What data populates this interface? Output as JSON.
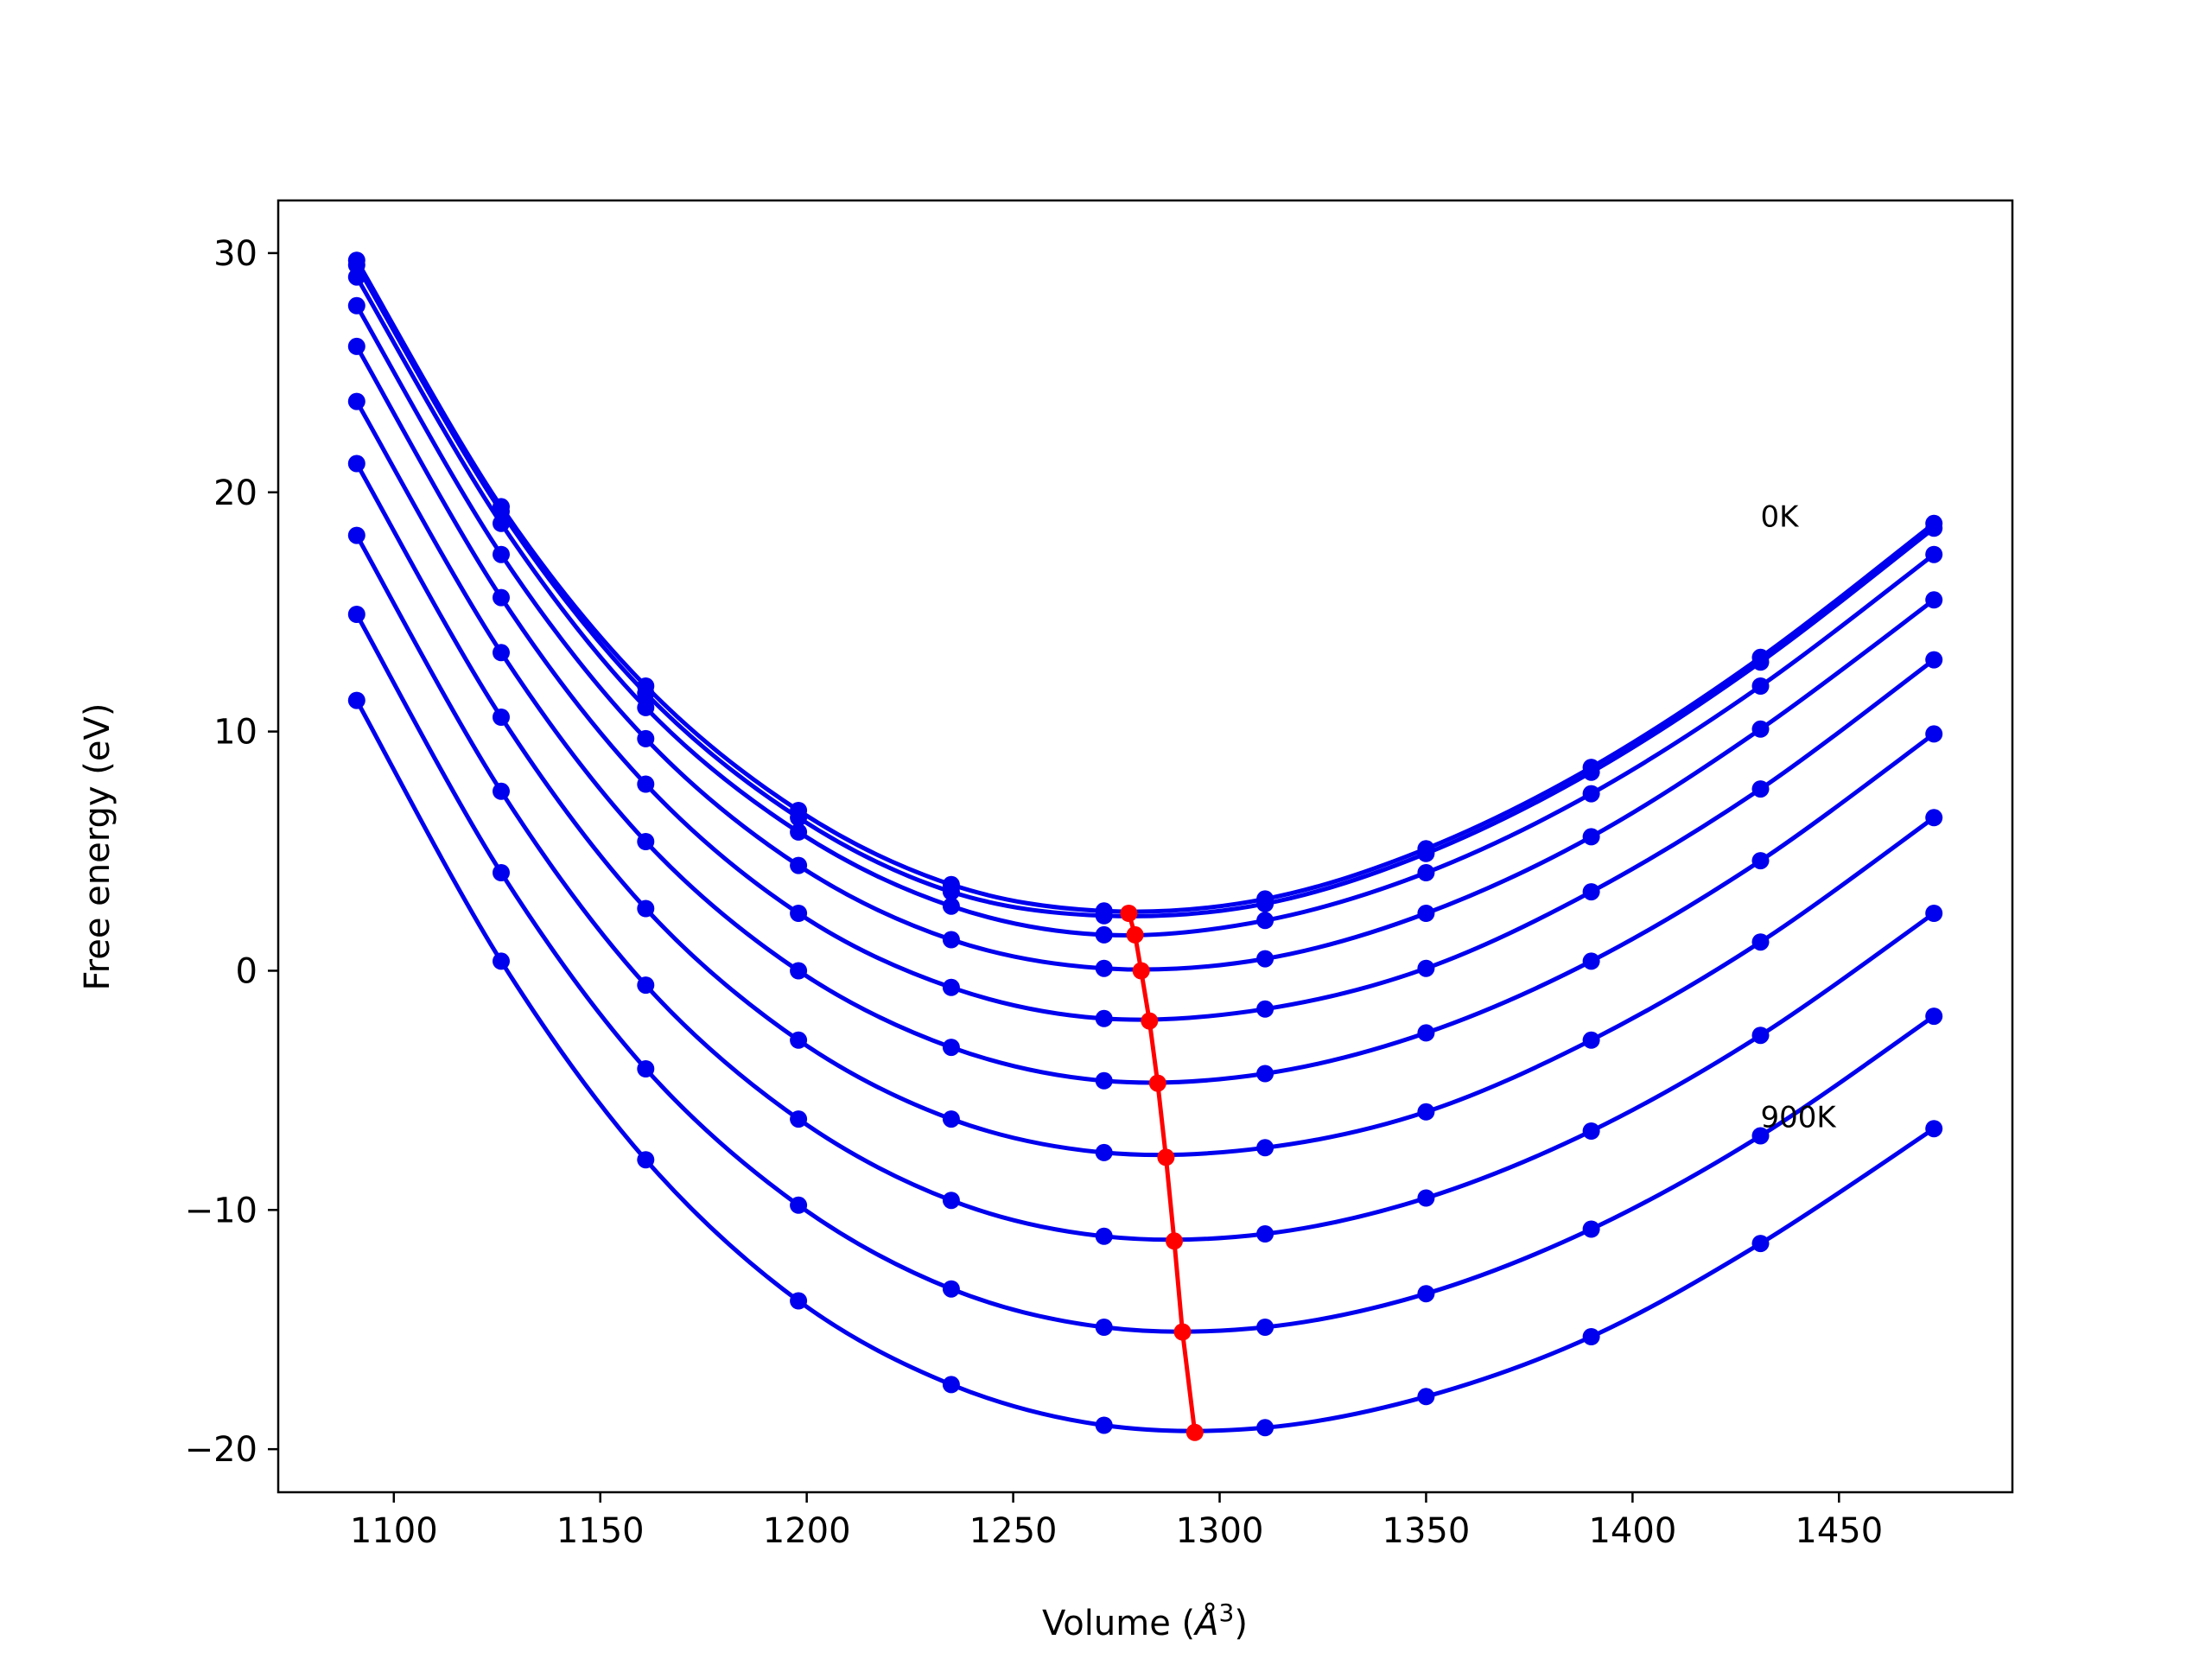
{
  "chart_data": {
    "type": "line",
    "title": "",
    "xlabel": "Volume (",
    "xlabel_symbol": "Å",
    "xlabel_exponent": "3",
    "xlabel_end": ")",
    "ylabel": "Free energy (eV)",
    "xlim": [
      1072,
      1492
    ],
    "ylim": [
      -21.8,
      32.2
    ],
    "x_ticks": [
      1100,
      1150,
      1200,
      1250,
      1300,
      1350,
      1400,
      1450
    ],
    "x_tick_labels": [
      "1100",
      "1150",
      "1200",
      "1250",
      "1300",
      "1350",
      "1400",
      "1450"
    ],
    "y_ticks": [
      -20,
      -10,
      0,
      10,
      20,
      30
    ],
    "y_tick_labels": [
      "−20",
      "−10",
      "0",
      "10",
      "20",
      "30"
    ],
    "grid": false,
    "annotations": [
      {
        "text": "0K",
        "x": 1431,
        "y": 19.0
      },
      {
        "text": "900K",
        "x": 1431,
        "y": -6.1
      }
    ],
    "x": [
      1091,
      1126,
      1161,
      1198,
      1235,
      1272,
      1311,
      1350,
      1390,
      1431,
      1473
    ],
    "series": [
      {
        "color": "#0000ee",
        "values": [
          29.7,
          19.4,
          11.9,
          6.7,
          3.6,
          2.5,
          3.0,
          5.1,
          8.5,
          13.1,
          18.7
        ]
      },
      {
        "color": "#0000ee",
        "values": [
          29.5,
          19.2,
          11.6,
          6.4,
          3.3,
          2.3,
          2.8,
          4.9,
          8.3,
          12.9,
          18.5
        ]
      },
      {
        "color": "#0000ee",
        "values": [
          29.0,
          18.7,
          11.0,
          5.8,
          2.7,
          1.5,
          2.1,
          4.1,
          7.4,
          11.9,
          17.4
        ]
      },
      {
        "color": "#0000ee",
        "values": [
          27.8,
          17.4,
          9.7,
          4.4,
          1.3,
          0.1,
          0.5,
          2.4,
          5.6,
          10.1,
          15.5
        ]
      },
      {
        "color": "#0000ee",
        "values": [
          26.1,
          15.6,
          7.8,
          2.4,
          -0.7,
          -2.0,
          -1.6,
          0.1,
          3.3,
          7.6,
          13.0
        ]
      },
      {
        "color": "#0000ee",
        "values": [
          23.8,
          13.3,
          5.4,
          0.0,
          -3.2,
          -4.6,
          -4.3,
          -2.6,
          0.4,
          4.6,
          9.9
        ]
      },
      {
        "color": "#0000ee",
        "values": [
          21.2,
          10.6,
          2.6,
          -2.9,
          -6.2,
          -7.6,
          -7.4,
          -5.9,
          -2.9,
          1.2,
          6.4
        ]
      },
      {
        "color": "#0000ee",
        "values": [
          18.2,
          7.5,
          -0.6,
          -6.2,
          -9.6,
          -11.1,
          -11.0,
          -9.5,
          -6.7,
          -2.7,
          2.4
        ]
      },
      {
        "color": "#0000ee",
        "values": [
          14.9,
          4.1,
          -4.1,
          -9.8,
          -13.3,
          -14.9,
          -14.9,
          -13.5,
          -10.8,
          -6.9,
          -1.9
        ]
      },
      {
        "color": "#0000ee",
        "values": [
          11.3,
          0.4,
          -7.9,
          -13.8,
          -17.3,
          -19.0,
          -19.1,
          -17.8,
          -15.3,
          -11.4,
          -6.6
        ]
      }
    ],
    "minima": {
      "color": "#ff0000",
      "x": [
        1278,
        1279.5,
        1281,
        1283,
        1285,
        1287,
        1289,
        1291,
        1294
      ],
      "y": [
        2.4,
        1.5,
        0.0,
        -2.1,
        -4.7,
        -7.8,
        -11.3,
        -15.1,
        -19.3
      ]
    }
  }
}
